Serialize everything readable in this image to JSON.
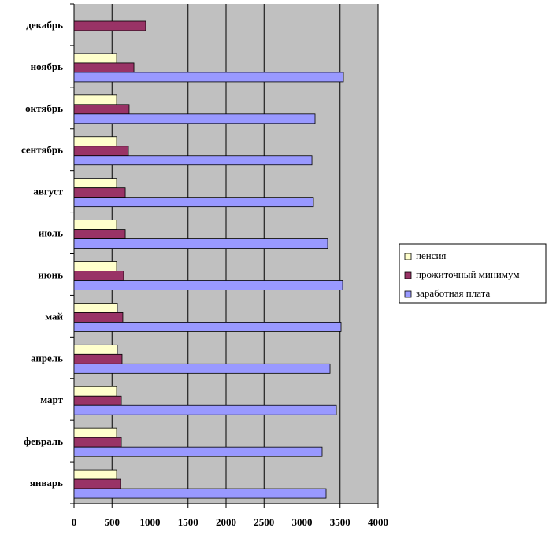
{
  "chart_data": {
    "type": "hbar",
    "categories": [
      "январь",
      "февраль",
      "март",
      "апрель",
      "май",
      "июнь",
      "июль",
      "август",
      "сентябрь",
      "октябрь",
      "ноябрь",
      "декабрь"
    ],
    "series": [
      {
        "name": "пенсия",
        "color": "#ffffcc",
        "values": [
          560,
          560,
          560,
          570,
          570,
          560,
          560,
          560,
          560,
          560,
          560,
          null
        ]
      },
      {
        "name": "прожиточный минимум",
        "color": "#993366",
        "values": [
          611,
          622,
          622,
          632,
          642,
          653,
          674,
          674,
          715,
          725,
          788,
          943
        ]
      },
      {
        "name": "заработная плата",
        "color": "#9999ff",
        "values": [
          3316,
          3264,
          3451,
          3368,
          3513,
          3534,
          3337,
          3150,
          3130,
          3171,
          3544,
          null
        ]
      }
    ],
    "xlim": [
      0,
      4000
    ],
    "xticks": [
      0,
      500,
      1000,
      1500,
      2000,
      2500,
      3000,
      3500,
      4000
    ],
    "grid": true,
    "legend": "right",
    "plot_background": "#c0c0c0"
  }
}
